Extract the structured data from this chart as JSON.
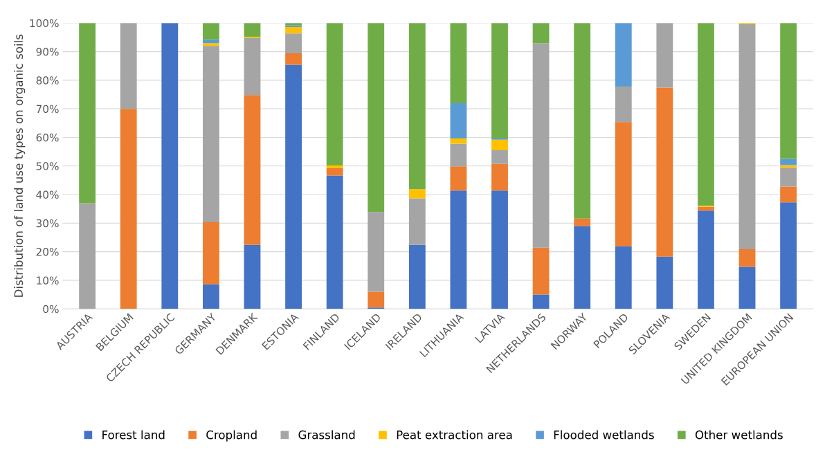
{
  "chart_data": {
    "type": "bar",
    "stacked": true,
    "ylabel": "Distribution of land use types on organic soils",
    "categories": [
      "AUSTRIA",
      "BELGIUM",
      "CZECH REPUBLIC",
      "GERMANY",
      "DENMARK",
      "ESTONIA",
      "FINLAND",
      "ICELAND",
      "IRELAND",
      "LITHUANIA",
      "LATVIA",
      "NETHERLANDS",
      "NORWAY",
      "POLAND",
      "SLOVENIA",
      "SWEDEN",
      "UNITED KINGDOM",
      "EUROPEAN UNION"
    ],
    "series": [
      {
        "name": "Forest land",
        "color": "#4472c4",
        "values": [
          0,
          0,
          100,
          8.6,
          22.4,
          85.4,
          46.7,
          0.5,
          22.4,
          41.4,
          41.4,
          5.0,
          29.0,
          21.9,
          18.3,
          34.4,
          14.7,
          37.3
        ]
      },
      {
        "name": "Cropland",
        "color": "#ed7d31",
        "values": [
          0,
          70,
          0,
          21.7,
          52.4,
          4.0,
          2.5,
          5.5,
          0,
          8.5,
          9.3,
          16.4,
          2.6,
          43.5,
          59.1,
          1.3,
          6.2,
          5.5
        ]
      },
      {
        "name": "Grassland",
        "color": "#a5a5a5",
        "values": [
          37,
          30,
          0,
          61.7,
          20.0,
          7.0,
          null,
          27.9,
          16.3,
          7.9,
          4.8,
          71.5,
          0,
          12.4,
          22.6,
          0,
          78.7,
          6.6
        ]
      },
      {
        "name": "Peat extraction area",
        "color": "#ffc000",
        "values": [
          0,
          0,
          0,
          1.0,
          0.4,
          2.2,
          1.0,
          0,
          3.2,
          1.8,
          3.7,
          0,
          0,
          0,
          0,
          0.4,
          0.4,
          0.9
        ]
      },
      {
        "name": "Flooded wetlands",
        "color": "#5b9bd5",
        "values": [
          0,
          0,
          0,
          1.2,
          0,
          0.6,
          0,
          0,
          0,
          12.4,
          0.4,
          0,
          0,
          22.2,
          0,
          0,
          0,
          2.2
        ]
      },
      {
        "name": "Other wetlands",
        "color": "#70ad47",
        "values": [
          63,
          0,
          0,
          5.8,
          4.8,
          0.8,
          49.8,
          66.1,
          58.1,
          28.0,
          40.4,
          7.1,
          68.4,
          0,
          0,
          63.9,
          0,
          47.5
        ]
      }
    ],
    "ylim": [
      0,
      100
    ],
    "yticks": [
      {
        "value": 0,
        "label": "0%"
      },
      {
        "value": 10,
        "label": "10%"
      },
      {
        "value": 20,
        "label": "20%"
      },
      {
        "value": 30,
        "label": "30%"
      },
      {
        "value": 40,
        "label": "40%"
      },
      {
        "value": 50,
        "label": "50%"
      },
      {
        "value": 60,
        "label": "60%"
      },
      {
        "value": 70,
        "label": "70%"
      },
      {
        "value": 80,
        "label": "80%"
      },
      {
        "value": 90,
        "label": "90%"
      },
      {
        "value": 100,
        "label": "100%"
      }
    ],
    "grid": "y",
    "legend": "bottom"
  }
}
